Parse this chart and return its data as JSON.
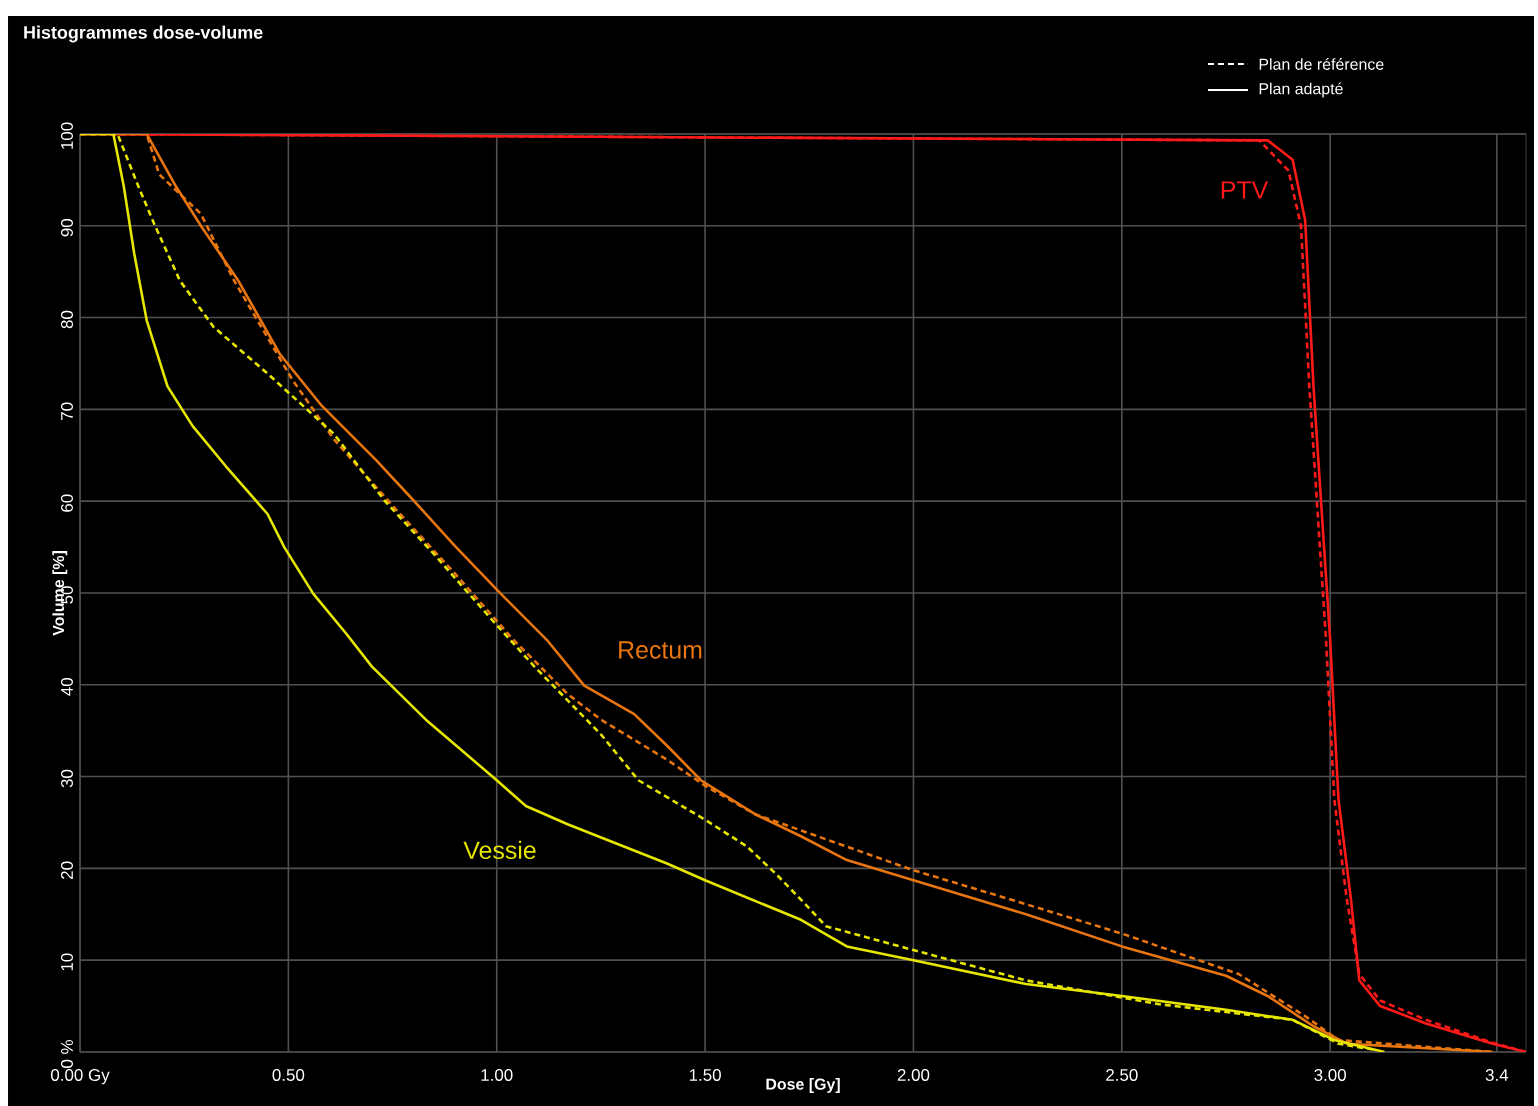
{
  "chart_data": {
    "type": "line",
    "title": "Histogrammes dose-volume",
    "xlabel": "Dose [Gy]",
    "ylabel": "Volume [%]",
    "xlim": [
      0,
      3.47
    ],
    "ylim": [
      0,
      100
    ],
    "xticks": [
      {
        "value": 0,
        "label": "0.00 Gy"
      },
      {
        "value": 0.5,
        "label": "0.50"
      },
      {
        "value": 1,
        "label": "1.00"
      },
      {
        "value": 1.5,
        "label": "1.50"
      },
      {
        "value": 2,
        "label": "2.00"
      },
      {
        "value": 2.5,
        "label": "2.50"
      },
      {
        "value": 3,
        "label": "3.00"
      },
      {
        "value": 3.4,
        "label": "3.4"
      }
    ],
    "yticks": [
      {
        "value": 0,
        "label": "0 %"
      },
      10,
      20,
      30,
      40,
      50,
      60,
      70,
      80,
      90,
      100
    ],
    "grid": true,
    "marker": "none",
    "series": [
      {
        "color": "#ff1a1a",
        "line_style": "dashed",
        "x": [
          0,
          2.83,
          2.9,
          2.93,
          2.95,
          2.99,
          3.01,
          3.04,
          3.07,
          3.12,
          3.23,
          3.39,
          3.47
        ],
        "values": [
          100,
          99.3,
          96,
          90,
          72.5,
          44.9,
          27.5,
          16.6,
          8.5,
          5.6,
          3.5,
          1.0,
          0
        ]
      },
      {
        "color": "#ff1a1a",
        "line_style": "solid",
        "x": [
          0,
          2.85,
          2.91,
          2.94,
          2.96,
          3.0,
          3.02,
          3.05,
          3.07,
          3.12,
          3.23,
          3.39,
          3.47
        ],
        "values": [
          100,
          99.3,
          97.2,
          90.6,
          72.5,
          44.9,
          27.5,
          16.6,
          7.8,
          5.0,
          3.1,
          0.9,
          0
        ]
      },
      {
        "color": "#e8750f",
        "line_style": "dashed",
        "x": [
          0,
          0.16,
          0.19,
          0.29,
          0.37,
          0.51,
          0.61,
          0.75,
          0.9,
          1.04,
          1.17,
          1.25,
          1.41,
          1.5,
          1.62,
          2.0,
          2.27,
          2.5,
          2.78,
          2.94,
          3.02,
          3.39
        ],
        "values": [
          100,
          100,
          95.6,
          91.3,
          84,
          73.2,
          66.7,
          59.5,
          52.1,
          44.9,
          39,
          36.2,
          31.8,
          29.0,
          25.9,
          19.8,
          16.1,
          12.9,
          8.5,
          3.9,
          1.3,
          0
        ]
      },
      {
        "color": "#e8750f",
        "line_style": "solid",
        "x": [
          0,
          0.16,
          0.23,
          0.29,
          0.38,
          0.48,
          0.58,
          0.71,
          0.8,
          0.9,
          1.01,
          1.12,
          1.21,
          1.33,
          1.41,
          1.49,
          1.62,
          1.73,
          1.84,
          2.0,
          2.27,
          2.5,
          2.75,
          2.85,
          2.96,
          3.04,
          3.39
        ],
        "values": [
          100,
          100,
          94.3,
          90,
          84,
          76,
          70.4,
          64.5,
          60.1,
          55.1,
          49.9,
          44.9,
          39.9,
          36.8,
          33.3,
          29.6,
          25.9,
          23.5,
          20.9,
          18.7,
          15.0,
          11.5,
          8.3,
          6.1,
          2.8,
          0.9,
          0
        ]
      },
      {
        "color": "#e6e600",
        "line_style": "dashed",
        "x": [
          0,
          0.09,
          0.14,
          0.18,
          0.24,
          0.32,
          0.45,
          0.61,
          0.73,
          0.85,
          0.99,
          1.09,
          1.25,
          1.34,
          1.5,
          1.6,
          1.67,
          1.73,
          1.79,
          2.0,
          2.27,
          2.59,
          2.91,
          3.02,
          3.11
        ],
        "values": [
          100,
          100,
          94.3,
          90,
          84,
          79,
          73.9,
          67.3,
          60.1,
          54.2,
          47,
          42,
          34.6,
          29.6,
          25.3,
          22.4,
          19.4,
          16.6,
          13.7,
          11.1,
          7.8,
          5.2,
          3.5,
          0.9,
          0.2
        ]
      },
      {
        "color": "#e6e600",
        "line_style": "solid",
        "x": [
          0,
          0.08,
          0.105,
          0.13,
          0.16,
          0.21,
          0.27,
          0.35,
          0.45,
          0.49,
          0.56,
          0.64,
          0.7,
          0.83,
          1.0,
          1.07,
          1.17,
          1.41,
          1.5,
          1.73,
          1.84,
          2.0,
          2.27,
          2.5,
          2.75,
          2.91,
          3.01,
          3.13
        ],
        "values": [
          100,
          100,
          94.3,
          87,
          79.7,
          72.5,
          68.2,
          63.8,
          58.6,
          55,
          49.9,
          45.5,
          42,
          36.2,
          29.6,
          26.8,
          24.8,
          20.5,
          18.7,
          14.4,
          11.5,
          10.0,
          7.4,
          6.1,
          4.6,
          3.5,
          1.3,
          0
        ]
      }
    ],
    "annotations": [
      "Plan de référence",
      "Plan adapté",
      "PTV",
      "Rectum",
      "Vessie"
    ]
  }
}
